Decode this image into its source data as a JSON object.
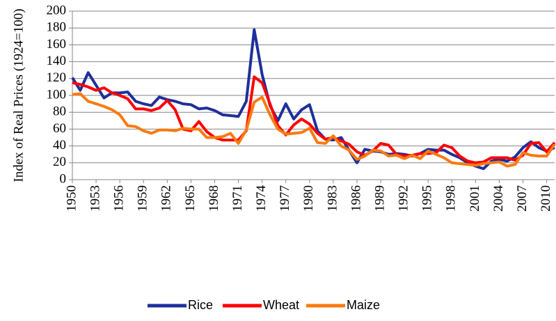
{
  "chart_data": {
    "type": "line",
    "y_label": "Index of Real Prices (1924=100)",
    "x": [
      1950,
      1951,
      1952,
      1953,
      1954,
      1955,
      1956,
      1957,
      1958,
      1959,
      1960,
      1961,
      1962,
      1963,
      1964,
      1965,
      1966,
      1967,
      1968,
      1969,
      1970,
      1971,
      1972,
      1973,
      1974,
      1975,
      1976,
      1977,
      1978,
      1979,
      1980,
      1981,
      1982,
      1983,
      1984,
      1985,
      1986,
      1987,
      1988,
      1989,
      1990,
      1991,
      1992,
      1993,
      1994,
      1995,
      1996,
      1997,
      1998,
      1999,
      2000,
      2001,
      2002,
      2003,
      2004,
      2005,
      2006,
      2007,
      2008,
      2009,
      2010,
      2011
    ],
    "series": [
      {
        "name": "Rice",
        "color": "#1f2f9b",
        "values": [
          121,
          106,
          127,
          112,
          97,
          103,
          103,
          104,
          93,
          90,
          88,
          98,
          95,
          93,
          90,
          89,
          84,
          85,
          82,
          77,
          76,
          75,
          93,
          178,
          125,
          88,
          70,
          90,
          72,
          83,
          89,
          58,
          48,
          47,
          50,
          35,
          20,
          36,
          34,
          33,
          30,
          31,
          30,
          28,
          31,
          36,
          35,
          35,
          30,
          26,
          20,
          16,
          13,
          22,
          24,
          22,
          27,
          38,
          45,
          38,
          34,
          38
        ]
      },
      {
        "name": "Wheat",
        "color": "#ff0000",
        "values": [
          115,
          113,
          110,
          106,
          109,
          103,
          100,
          96,
          84,
          84,
          82,
          85,
          94,
          83,
          60,
          58,
          69,
          57,
          50,
          47,
          47,
          47,
          58,
          122,
          115,
          90,
          64,
          53,
          65,
          72,
          66,
          55,
          48,
          50,
          46,
          42,
          33,
          29,
          34,
          43,
          41,
          30,
          28,
          29,
          31,
          31,
          32,
          41,
          38,
          28,
          22,
          20,
          21,
          26,
          26,
          26,
          23,
          29,
          43,
          44,
          33,
          44
        ]
      },
      {
        "name": "Maize",
        "color": "#f97a10",
        "values": [
          101,
          102,
          93,
          90,
          87,
          83,
          77,
          64,
          63,
          58,
          55,
          59,
          59,
          58,
          61,
          60,
          60,
          50,
          50,
          51,
          55,
          43,
          59,
          92,
          98,
          77,
          60,
          54,
          55,
          56,
          61,
          44,
          43,
          52,
          40,
          35,
          24,
          28,
          35,
          34,
          28,
          29,
          25,
          29,
          25,
          34,
          30,
          26,
          20,
          19,
          18,
          17,
          19,
          20,
          21,
          16,
          18,
          32,
          29,
          28,
          28,
          42
        ]
      }
    ],
    "xlim": [
      1950,
      2011
    ],
    "xticks": [
      1950,
      1953,
      1956,
      1959,
      1962,
      1965,
      1968,
      1971,
      1974,
      1977,
      1980,
      1983,
      1986,
      1989,
      1992,
      1995,
      1998,
      2001,
      2004,
      2007,
      2010
    ],
    "ylim": [
      0,
      200
    ],
    "yticks": [
      0,
      20,
      40,
      60,
      80,
      100,
      120,
      140,
      160,
      180,
      200
    ],
    "grid": true,
    "legend": "bottom"
  }
}
